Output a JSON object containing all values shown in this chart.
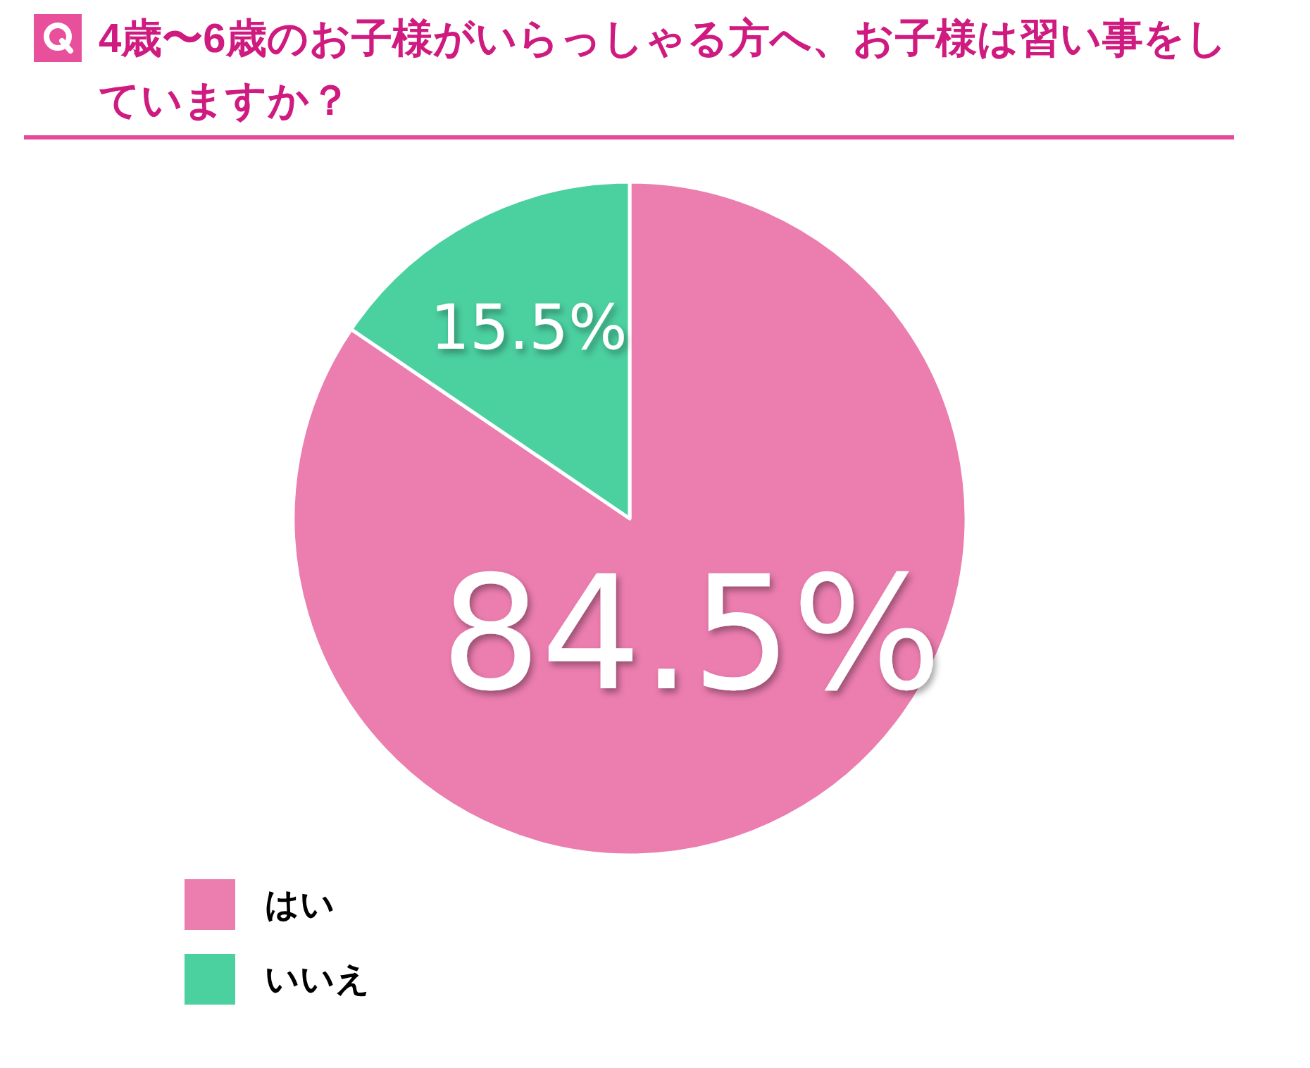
{
  "chart_data": {
    "type": "pie",
    "title": "4歳〜6歳のお子様がいらっしゃる方へ、お子様は習い事をしていますか？",
    "categories": [
      "はい",
      "いいえ"
    ],
    "values": [
      84.5,
      15.5
    ],
    "colors": [
      "#eb7daf",
      "#4bd0a0"
    ],
    "value_labels": [
      "84.5%",
      "15.5%"
    ],
    "legend": "bottom left"
  }
}
